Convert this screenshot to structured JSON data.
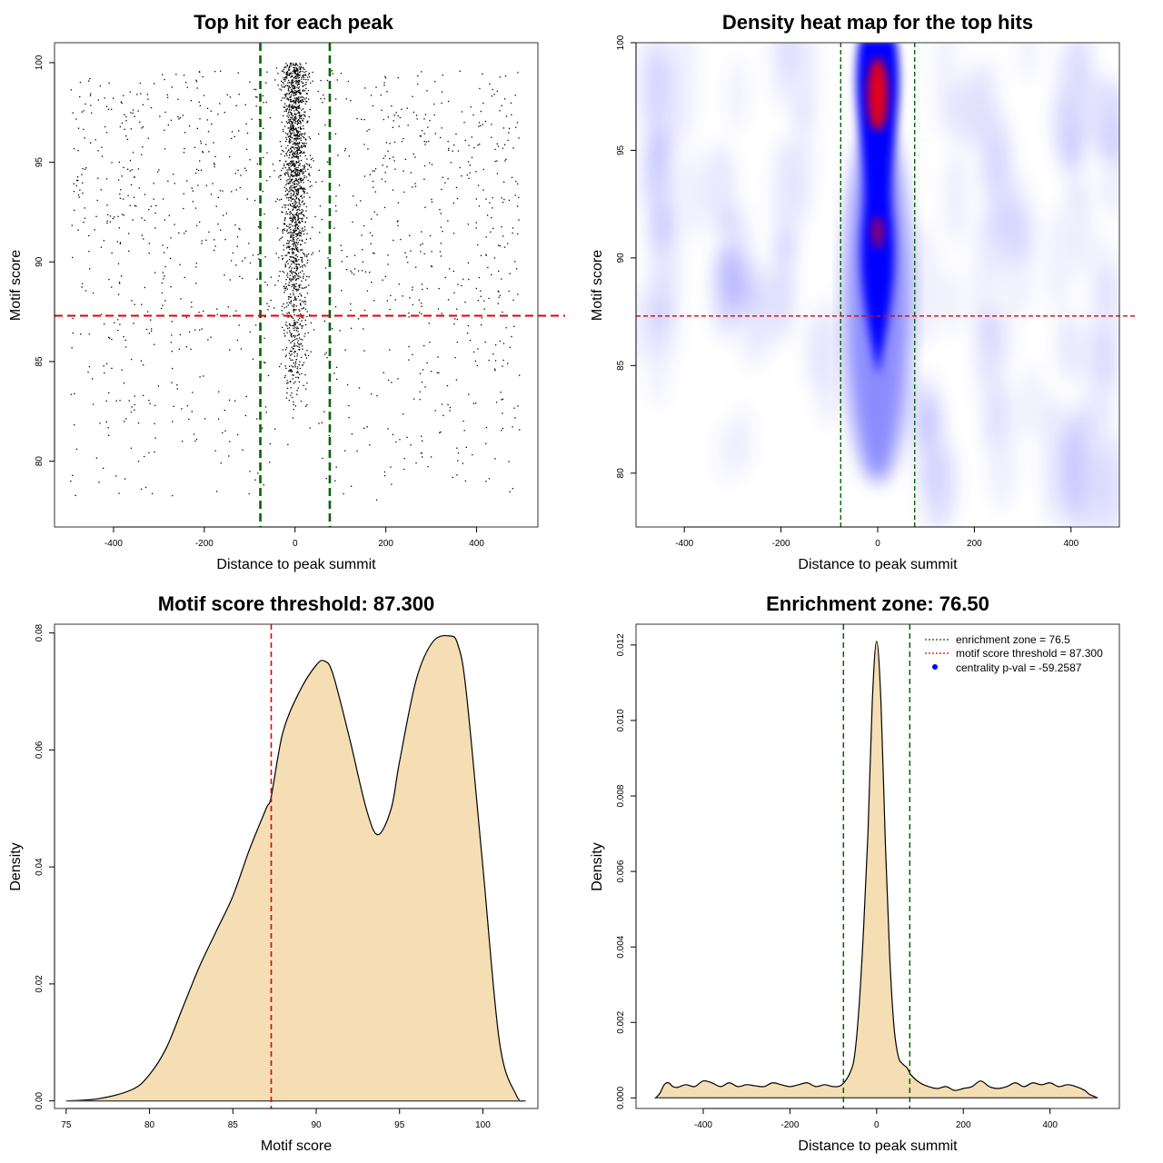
{
  "chart_data": [
    {
      "id": "scatter",
      "type": "scatter",
      "title": "Top hit for each peak",
      "xlabel": "Distance to peak summit",
      "ylabel": "Motif score",
      "xlim": [
        -530,
        535
      ],
      "ylim": [
        76.7,
        101
      ],
      "xticks": [
        -400,
        -200,
        0,
        200,
        400
      ],
      "yticks": [
        80,
        85,
        90,
        95,
        100
      ],
      "vlines": [
        -76.5,
        76.5
      ],
      "hline": 87.3,
      "vline_color": "#006400",
      "hline_color": "#e00000",
      "point_color": "#000000"
    },
    {
      "id": "heatmap",
      "type": "heatmap",
      "title": "Density heat map for the top hits",
      "xlabel": "Distance to peak summit",
      "ylabel": "Motif score",
      "xlim": [
        -500,
        500
      ],
      "ylim": [
        77.5,
        100
      ],
      "xticks": [
        -400,
        -200,
        0,
        200,
        400
      ],
      "yticks": [
        80,
        85,
        90,
        95,
        100
      ],
      "vlines": [
        -76.5,
        76.5
      ],
      "hline": 87.3,
      "low_color": "#ffffff",
      "mid_color": "#0000ff",
      "high_color": "#ff0000"
    },
    {
      "id": "scoredensity",
      "type": "area",
      "title": "Motif score threshold: 87.300",
      "xlabel": "Motif score",
      "ylabel": "Density",
      "xlim": [
        74.3,
        103.3
      ],
      "ylim": [
        -0.0013,
        0.0815
      ],
      "xticks": [
        75,
        80,
        85,
        90,
        95,
        100
      ],
      "yticks": [
        0.0,
        0.02,
        0.04,
        0.06,
        0.08
      ],
      "ytick_labels": [
        "0.00",
        "0.02",
        "0.04",
        "0.06",
        "0.08"
      ],
      "vline": 87.3,
      "fill_color": "#f5deb3",
      "x": [
        75,
        77,
        79,
        80,
        81,
        82,
        83,
        84,
        85,
        86,
        87,
        87.3,
        88,
        89,
        90,
        90.5,
        91,
        92,
        93,
        93.7,
        94.5,
        95,
        96,
        97,
        98,
        98.5,
        99,
        100,
        101,
        102,
        102.5
      ],
      "y": [
        0.0,
        0.0004,
        0.002,
        0.0045,
        0.009,
        0.016,
        0.023,
        0.029,
        0.035,
        0.043,
        0.05,
        0.052,
        0.063,
        0.07,
        0.0745,
        0.0752,
        0.073,
        0.062,
        0.05,
        0.0455,
        0.05,
        0.058,
        0.072,
        0.0785,
        0.0795,
        0.078,
        0.07,
        0.04,
        0.01,
        0.001,
        0.0
      ]
    },
    {
      "id": "distdensity",
      "type": "area",
      "title": "Enrichment zone: 76.50",
      "xlabel": "Distance to peak summit",
      "ylabel": "Density",
      "xlim": [
        -555,
        560
      ],
      "ylim": [
        -0.00028,
        0.01255
      ],
      "xticks": [
        -400,
        -200,
        0,
        200,
        400
      ],
      "yticks": [
        0.0,
        0.002,
        0.004,
        0.006,
        0.008,
        0.01,
        0.012
      ],
      "ytick_labels": [
        "0.000",
        "0.002",
        "0.004",
        "0.006",
        "0.008",
        "0.010",
        "0.012"
      ],
      "vlines": [
        -76.5,
        76.5
      ],
      "fill_color": "#f5deb3",
      "x": [
        -510,
        -500,
        -490,
        -480,
        -470,
        -460,
        -440,
        -420,
        -400,
        -380,
        -360,
        -340,
        -320,
        -300,
        -280,
        -260,
        -240,
        -220,
        -200,
        -180,
        -160,
        -140,
        -120,
        -100,
        -80,
        -60,
        -50,
        -40,
        -30,
        -20,
        -10,
        0,
        10,
        20,
        30,
        40,
        50,
        60,
        70,
        80,
        100,
        120,
        140,
        160,
        180,
        200,
        220,
        240,
        260,
        280,
        300,
        320,
        340,
        360,
        380,
        400,
        420,
        440,
        460,
        480,
        490,
        500,
        510
      ],
      "y": [
        0.0,
        0.00012,
        0.00035,
        0.0004,
        0.0003,
        0.00028,
        0.00035,
        0.0003,
        0.00045,
        0.0004,
        0.0003,
        0.0004,
        0.0003,
        0.00035,
        0.00032,
        0.0003,
        0.0004,
        0.00035,
        0.0003,
        0.00035,
        0.0004,
        0.0003,
        0.00035,
        0.0003,
        0.00035,
        0.0007,
        0.0012,
        0.0025,
        0.0045,
        0.007,
        0.0105,
        0.0121,
        0.0105,
        0.0068,
        0.0038,
        0.0019,
        0.0011,
        0.0009,
        0.0008,
        0.0006,
        0.0004,
        0.0003,
        0.00025,
        0.0003,
        0.0002,
        0.00025,
        0.0003,
        0.00045,
        0.0003,
        0.00025,
        0.0003,
        0.0004,
        0.0003,
        0.0004,
        0.00035,
        0.0004,
        0.0003,
        0.00035,
        0.0003,
        0.0002,
        0.0001,
        5e-05,
        0.0
      ],
      "legend": [
        {
          "label": "enrichment zone = 76.5",
          "color": "#006400",
          "style": "dotted-line"
        },
        {
          "label": "motif score threshold = 87.300",
          "color": "#e00000",
          "style": "dotted-line"
        },
        {
          "label": "centrality p-val = -59.2587",
          "color": "#0000ff",
          "style": "point"
        }
      ],
      "legend_position": "top-right"
    }
  ]
}
